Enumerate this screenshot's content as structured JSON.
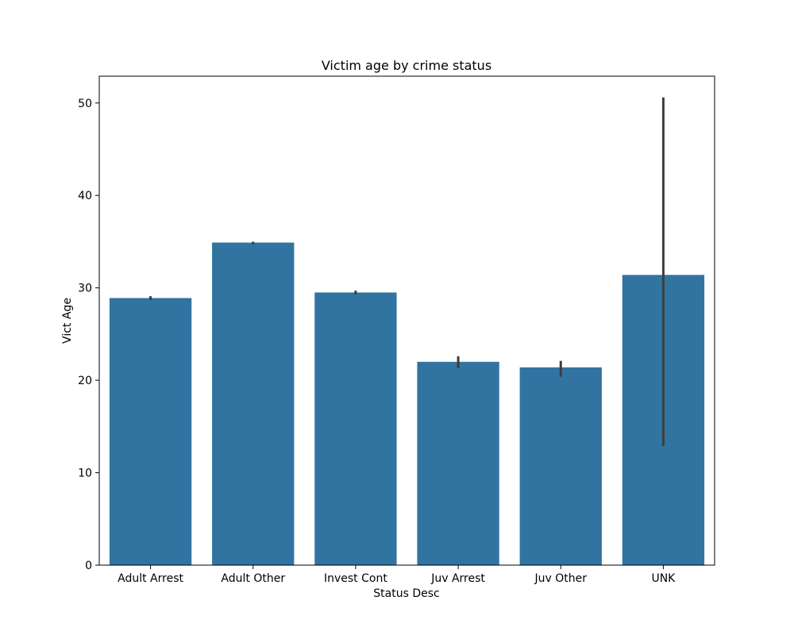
{
  "chart_data": {
    "type": "bar",
    "title": "Victim age by crime status",
    "xlabel": "Status Desc",
    "ylabel": "Vict Age",
    "categories": [
      "Adult Arrest",
      "Adult Other",
      "Invest Cont",
      "Juv Arrest",
      "Juv Other",
      "UNK"
    ],
    "values": [
      28.9,
      34.9,
      29.5,
      22.0,
      21.4,
      31.4
    ],
    "error_bars": [
      [
        28.7,
        29.1
      ],
      [
        34.7,
        35.0
      ],
      [
        29.3,
        29.7
      ],
      [
        21.3,
        22.6
      ],
      [
        20.4,
        22.1
      ],
      [
        12.9,
        50.6
      ]
    ],
    "ylim": [
      0,
      52.9
    ],
    "yticks": [
      0,
      10,
      20,
      30,
      40,
      50
    ],
    "grid": false,
    "legend": "none",
    "colors": {
      "bar": "#3274a1",
      "error_bar": "#3d3d3d",
      "axis": "#000000"
    }
  }
}
